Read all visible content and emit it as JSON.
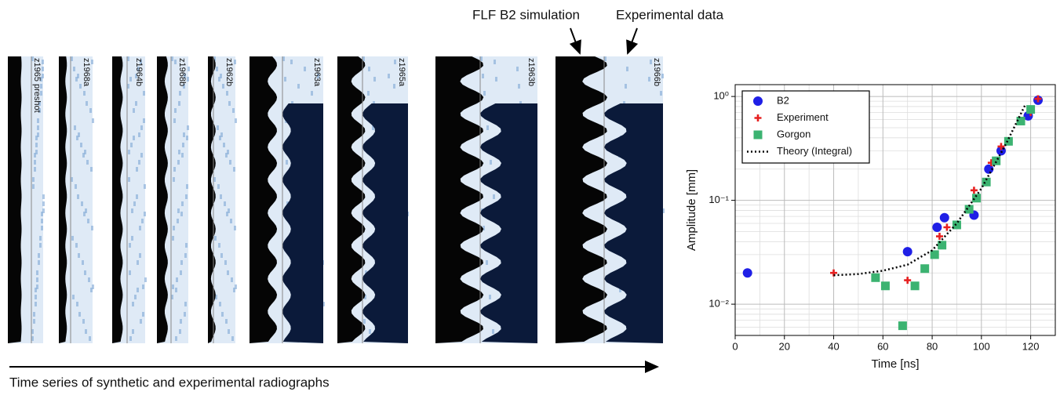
{
  "figure": {
    "annotation": [
      "FLF B2 simulation",
      "Experimental data"
    ],
    "caption": "Time series of synthetic and experimental radiographs",
    "strips": [
      "z1965 preshot",
      "z1968a",
      "z1964b",
      "z1968b",
      "z1962b",
      "z1963a",
      "z1965a",
      "z1963b",
      "z1966b"
    ]
  },
  "chart_data": {
    "type": "scatter",
    "xlabel": "Time [ns]",
    "ylabel": "Amplitude [mm]",
    "xlim": [
      0,
      130
    ],
    "xticks": [
      0,
      20,
      40,
      60,
      80,
      100,
      120
    ],
    "xminorticks": [
      10,
      30,
      50,
      70,
      90,
      110,
      130
    ],
    "ylim": [
      0.005,
      1.3
    ],
    "ylog": true,
    "yticks": [
      {
        "value": 0.01,
        "label": "10⁻²"
      },
      {
        "value": 0.1,
        "label": "10⁻¹"
      },
      {
        "value": 1,
        "label": "10⁰"
      }
    ],
    "yminorticks": [
      0.005,
      0.006,
      0.007,
      0.008,
      0.009,
      0.02,
      0.03,
      0.04,
      0.05,
      0.06,
      0.07,
      0.08,
      0.09,
      0.2,
      0.3,
      0.4,
      0.5,
      0.6,
      0.7,
      0.8,
      0.9
    ],
    "grid": true,
    "legend": "upper left",
    "series": [
      {
        "name": "B2",
        "color": "#1f1fe6",
        "marker": "circle",
        "x": [
          5,
          70,
          82,
          85,
          97,
          103,
          108,
          119,
          123
        ],
        "values": [
          0.02,
          0.032,
          0.055,
          0.068,
          0.072,
          0.2,
          0.3,
          0.65,
          0.92
        ]
      },
      {
        "name": "Experiment",
        "color": "#e62020",
        "marker": "plus",
        "x": [
          40,
          70,
          83,
          86,
          97,
          104,
          108,
          120,
          123
        ],
        "values": [
          0.02,
          0.017,
          0.045,
          0.055,
          0.125,
          0.23,
          0.33,
          0.7,
          0.95
        ]
      },
      {
        "name": "Gorgon",
        "color": "#3cb371",
        "marker": "square",
        "x": [
          57,
          61,
          68,
          73,
          77,
          81,
          84,
          90,
          95,
          98,
          102,
          106,
          111,
          116,
          120
        ],
        "values": [
          0.018,
          0.015,
          0.0062,
          0.015,
          0.022,
          0.03,
          0.037,
          0.058,
          0.082,
          0.105,
          0.15,
          0.24,
          0.37,
          0.58,
          0.75
        ]
      },
      {
        "name": "Theory (Integral)",
        "color": "#000000",
        "marker": "dotted-line",
        "x": [
          40,
          50,
          60,
          70,
          80,
          90,
          100,
          110,
          118
        ],
        "values": [
          0.019,
          0.0195,
          0.021,
          0.024,
          0.033,
          0.06,
          0.13,
          0.35,
          0.85
        ]
      }
    ]
  }
}
